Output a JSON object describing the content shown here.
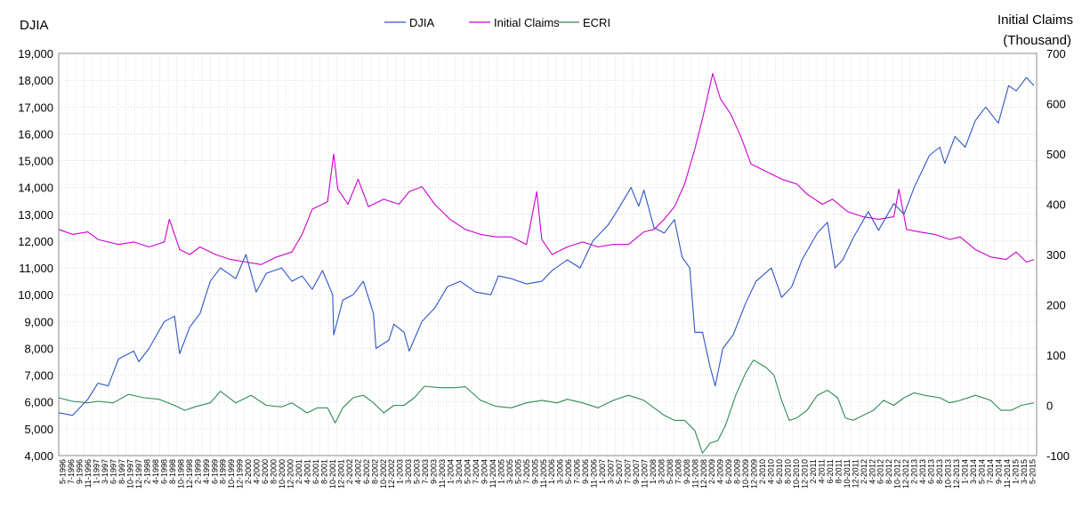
{
  "chart_data": {
    "type": "line",
    "title": "",
    "left_axis_title": "DJIA",
    "right_axis_title_line1": "Initial Claims",
    "right_axis_title_line2": "(Thousand)",
    "left_ylim": [
      4000,
      19000
    ],
    "left_ticks": [
      "4,000",
      "5,000",
      "6,000",
      "7,000",
      "8,000",
      "9,000",
      "10,000",
      "11,000",
      "12,000",
      "13,000",
      "14,000",
      "15,000",
      "16,000",
      "17,000",
      "18,000",
      "19,000"
    ],
    "right_ylim": [
      -100,
      700
    ],
    "right_ticks": [
      "-100",
      "0",
      "100",
      "200",
      "300",
      "400",
      "500",
      "600",
      "700"
    ],
    "right_tick_colors": {
      "-100": "#ff0000",
      "default": "#000000"
    },
    "grid": true,
    "legend_position": "top-center",
    "x_tick_labels": [
      "5-1996",
      "7-1996",
      "9-1996",
      "11-1996",
      "1-1997",
      "3-1997",
      "6-1997",
      "8-1997",
      "10-1997",
      "12-1997",
      "2-1998",
      "4-1998",
      "6-1998",
      "8-1998",
      "10-1998",
      "12-1998",
      "2-1999",
      "4-1999",
      "6-1999",
      "8-1999",
      "10-1999",
      "12-1999",
      "2-2000",
      "4-2000",
      "6-2000",
      "8-2000",
      "10-2000",
      "12-2000",
      "2-2001",
      "4-2001",
      "6-2001",
      "8-2001",
      "10-2001",
      "12-2001",
      "2-2002",
      "4-2002",
      "6-2002",
      "8-2002",
      "10-2002",
      "12-2002",
      "1-2003",
      "3-2003",
      "5-2003",
      "7-2003",
      "9-2003",
      "11-2003",
      "1-2004",
      "3-2004",
      "5-2004",
      "7-2004",
      "9-2004",
      "11-2004",
      "1-2005",
      "3-2005",
      "5-2005",
      "7-2005",
      "9-2005",
      "11-2005",
      "1-2006",
      "3-2006",
      "5-2006",
      "7-2006",
      "9-2006",
      "11-2006",
      "1-2007",
      "3-2007",
      "5-2007",
      "7-2007",
      "9-2007",
      "11-2007",
      "1-2008",
      "3-2008",
      "5-2008",
      "7-2008",
      "9-2008",
      "11-2008",
      "12-2008",
      "2-2009",
      "4-2009",
      "6-2009",
      "8-2009",
      "10-2009",
      "12-2009",
      "2-2010",
      "4-2010",
      "6-2010",
      "8-2010",
      "10-2010",
      "12-2010",
      "2-2011",
      "4-2011",
      "6-2011",
      "8-2011",
      "10-2011",
      "12-2011",
      "2-2012",
      "4-2012",
      "6-2012",
      "8-2012",
      "10-2012",
      "12-2012",
      "2-2013",
      "4-2013",
      "6-2013",
      "8-2013",
      "10-2013",
      "12-2013",
      "1-2014",
      "3-2014",
      "5-2014",
      "7-2014",
      "9-2014",
      "11-2014",
      "1-2015",
      "3-2015",
      "5-2015"
    ],
    "series": [
      {
        "name": "DJIA",
        "axis": "left",
        "color": "#2f55c8",
        "points": [
          [
            1996.33,
            5600
          ],
          [
            1996.6,
            5500
          ],
          [
            1996.9,
            6100
          ],
          [
            1997.1,
            6700
          ],
          [
            1997.3,
            6600
          ],
          [
            1997.5,
            7600
          ],
          [
            1997.8,
            7900
          ],
          [
            1997.9,
            7500
          ],
          [
            1998.1,
            8000
          ],
          [
            1998.4,
            9000
          ],
          [
            1998.6,
            9200
          ],
          [
            1998.7,
            7800
          ],
          [
            1998.9,
            8800
          ],
          [
            1999.1,
            9300
          ],
          [
            1999.3,
            10500
          ],
          [
            1999.5,
            11000
          ],
          [
            1999.8,
            10600
          ],
          [
            2000.0,
            11500
          ],
          [
            2000.2,
            10100
          ],
          [
            2000.4,
            10800
          ],
          [
            2000.7,
            11000
          ],
          [
            2000.9,
            10500
          ],
          [
            2001.1,
            10700
          ],
          [
            2001.3,
            10200
          ],
          [
            2001.5,
            10900
          ],
          [
            2001.7,
            10000
          ],
          [
            2001.72,
            8500
          ],
          [
            2001.9,
            9800
          ],
          [
            2002.1,
            10000
          ],
          [
            2002.3,
            10500
          ],
          [
            2002.5,
            9300
          ],
          [
            2002.55,
            8000
          ],
          [
            2002.8,
            8300
          ],
          [
            2002.9,
            8900
          ],
          [
            2003.1,
            8600
          ],
          [
            2003.2,
            7900
          ],
          [
            2003.45,
            9000
          ],
          [
            2003.7,
            9500
          ],
          [
            2003.95,
            10300
          ],
          [
            2004.2,
            10500
          ],
          [
            2004.5,
            10100
          ],
          [
            2004.8,
            10000
          ],
          [
            2004.95,
            10700
          ],
          [
            2005.2,
            10600
          ],
          [
            2005.5,
            10400
          ],
          [
            2005.8,
            10500
          ],
          [
            2006.0,
            10900
          ],
          [
            2006.3,
            11300
          ],
          [
            2006.55,
            11000
          ],
          [
            2006.8,
            12000
          ],
          [
            2007.1,
            12600
          ],
          [
            2007.3,
            13200
          ],
          [
            2007.55,
            14000
          ],
          [
            2007.7,
            13300
          ],
          [
            2007.8,
            13900
          ],
          [
            2008.0,
            12500
          ],
          [
            2008.2,
            12300
          ],
          [
            2008.4,
            12800
          ],
          [
            2008.55,
            11400
          ],
          [
            2008.7,
            11000
          ],
          [
            2008.8,
            8600
          ],
          [
            2008.95,
            8600
          ],
          [
            2009.1,
            7300
          ],
          [
            2009.2,
            6600
          ],
          [
            2009.35,
            8000
          ],
          [
            2009.55,
            8500
          ],
          [
            2009.8,
            9700
          ],
          [
            2010.0,
            10500
          ],
          [
            2010.3,
            11000
          ],
          [
            2010.5,
            9900
          ],
          [
            2010.7,
            10300
          ],
          [
            2010.9,
            11300
          ],
          [
            2011.2,
            12300
          ],
          [
            2011.4,
            12700
          ],
          [
            2011.55,
            11000
          ],
          [
            2011.7,
            11300
          ],
          [
            2011.9,
            12100
          ],
          [
            2012.2,
            13100
          ],
          [
            2012.4,
            12400
          ],
          [
            2012.7,
            13400
          ],
          [
            2012.9,
            13000
          ],
          [
            2013.1,
            14000
          ],
          [
            2013.4,
            15200
          ],
          [
            2013.6,
            15500
          ],
          [
            2013.7,
            14900
          ],
          [
            2013.9,
            15900
          ],
          [
            2014.1,
            15500
          ],
          [
            2014.3,
            16500
          ],
          [
            2014.5,
            17000
          ],
          [
            2014.75,
            16400
          ],
          [
            2014.95,
            17800
          ],
          [
            2015.1,
            17600
          ],
          [
            2015.3,
            18100
          ],
          [
            2015.45,
            17800
          ]
        ]
      },
      {
        "name": "Initial Claims",
        "axis": "right",
        "color": "#cc00cc",
        "points": [
          [
            1996.33,
            350
          ],
          [
            1996.6,
            340
          ],
          [
            1996.9,
            345
          ],
          [
            1997.1,
            330
          ],
          [
            1997.5,
            320
          ],
          [
            1997.8,
            325
          ],
          [
            1998.1,
            315
          ],
          [
            1998.4,
            325
          ],
          [
            1998.5,
            370
          ],
          [
            1998.7,
            310
          ],
          [
            1998.9,
            300
          ],
          [
            1999.1,
            315
          ],
          [
            1999.4,
            300
          ],
          [
            1999.7,
            290
          ],
          [
            2000.0,
            285
          ],
          [
            2000.3,
            280
          ],
          [
            2000.6,
            295
          ],
          [
            2000.9,
            305
          ],
          [
            2001.1,
            340
          ],
          [
            2001.3,
            390
          ],
          [
            2001.6,
            405
          ],
          [
            2001.72,
            500
          ],
          [
            2001.8,
            430
          ],
          [
            2002.0,
            400
          ],
          [
            2002.2,
            450
          ],
          [
            2002.4,
            395
          ],
          [
            2002.7,
            410
          ],
          [
            2003.0,
            400
          ],
          [
            2003.2,
            425
          ],
          [
            2003.45,
            435
          ],
          [
            2003.7,
            400
          ],
          [
            2004.0,
            370
          ],
          [
            2004.3,
            350
          ],
          [
            2004.6,
            340
          ],
          [
            2004.9,
            335
          ],
          [
            2005.2,
            335
          ],
          [
            2005.5,
            320
          ],
          [
            2005.7,
            425
          ],
          [
            2005.8,
            330
          ],
          [
            2006.0,
            300
          ],
          [
            2006.3,
            315
          ],
          [
            2006.6,
            325
          ],
          [
            2006.9,
            315
          ],
          [
            2007.2,
            320
          ],
          [
            2007.5,
            320
          ],
          [
            2007.8,
            345
          ],
          [
            2008.0,
            350
          ],
          [
            2008.2,
            370
          ],
          [
            2008.4,
            395
          ],
          [
            2008.6,
            440
          ],
          [
            2008.8,
            510
          ],
          [
            2008.95,
            570
          ],
          [
            2009.15,
            660
          ],
          [
            2009.3,
            610
          ],
          [
            2009.5,
            580
          ],
          [
            2009.7,
            535
          ],
          [
            2009.9,
            480
          ],
          [
            2010.2,
            465
          ],
          [
            2010.5,
            450
          ],
          [
            2010.8,
            440
          ],
          [
            2011.0,
            420
          ],
          [
            2011.3,
            400
          ],
          [
            2011.5,
            410
          ],
          [
            2011.8,
            385
          ],
          [
            2012.1,
            375
          ],
          [
            2012.4,
            370
          ],
          [
            2012.7,
            375
          ],
          [
            2012.8,
            430
          ],
          [
            2012.95,
            350
          ],
          [
            2013.2,
            345
          ],
          [
            2013.5,
            340
          ],
          [
            2013.8,
            330
          ],
          [
            2014.0,
            335
          ],
          [
            2014.3,
            310
          ],
          [
            2014.6,
            295
          ],
          [
            2014.9,
            290
          ],
          [
            2015.1,
            305
          ],
          [
            2015.3,
            285
          ],
          [
            2015.45,
            290
          ]
        ]
      },
      {
        "name": "ECRI",
        "axis": "right",
        "color": "#2e8b57",
        "points": [
          [
            1996.33,
            15
          ],
          [
            1996.6,
            8
          ],
          [
            1996.9,
            5
          ],
          [
            1997.1,
            8
          ],
          [
            1997.4,
            5
          ],
          [
            1997.7,
            22
          ],
          [
            1998.0,
            15
          ],
          [
            1998.3,
            12
          ],
          [
            1998.6,
            0
          ],
          [
            1998.8,
            -10
          ],
          [
            1999.0,
            -3
          ],
          [
            1999.3,
            5
          ],
          [
            1999.5,
            28
          ],
          [
            1999.8,
            5
          ],
          [
            2000.1,
            20
          ],
          [
            2000.4,
            0
          ],
          [
            2000.7,
            -3
          ],
          [
            2000.9,
            5
          ],
          [
            2001.2,
            -15
          ],
          [
            2001.4,
            -5
          ],
          [
            2001.6,
            -5
          ],
          [
            2001.75,
            -35
          ],
          [
            2001.9,
            -5
          ],
          [
            2002.1,
            15
          ],
          [
            2002.3,
            20
          ],
          [
            2002.5,
            5
          ],
          [
            2002.7,
            -15
          ],
          [
            2002.9,
            0
          ],
          [
            2003.1,
            0
          ],
          [
            2003.3,
            15
          ],
          [
            2003.5,
            38
          ],
          [
            2003.8,
            35
          ],
          [
            2004.1,
            35
          ],
          [
            2004.3,
            37
          ],
          [
            2004.6,
            10
          ],
          [
            2004.9,
            -2
          ],
          [
            2005.2,
            -5
          ],
          [
            2005.5,
            5
          ],
          [
            2005.8,
            10
          ],
          [
            2006.1,
            5
          ],
          [
            2006.3,
            12
          ],
          [
            2006.6,
            5
          ],
          [
            2006.9,
            -5
          ],
          [
            2007.2,
            10
          ],
          [
            2007.5,
            20
          ],
          [
            2007.8,
            10
          ],
          [
            2008.0,
            -5
          ],
          [
            2008.2,
            -20
          ],
          [
            2008.4,
            -30
          ],
          [
            2008.6,
            -30
          ],
          [
            2008.8,
            -50
          ],
          [
            2008.95,
            -95
          ],
          [
            2009.1,
            -75
          ],
          [
            2009.25,
            -70
          ],
          [
            2009.4,
            -40
          ],
          [
            2009.6,
            20
          ],
          [
            2009.8,
            65
          ],
          [
            2009.95,
            90
          ],
          [
            2010.2,
            75
          ],
          [
            2010.35,
            60
          ],
          [
            2010.5,
            10
          ],
          [
            2010.65,
            -30
          ],
          [
            2010.8,
            -25
          ],
          [
            2011.0,
            -10
          ],
          [
            2011.2,
            20
          ],
          [
            2011.4,
            30
          ],
          [
            2011.6,
            15
          ],
          [
            2011.75,
            -25
          ],
          [
            2011.9,
            -30
          ],
          [
            2012.1,
            -20
          ],
          [
            2012.3,
            -10
          ],
          [
            2012.5,
            10
          ],
          [
            2012.7,
            0
          ],
          [
            2012.9,
            15
          ],
          [
            2013.1,
            25
          ],
          [
            2013.3,
            20
          ],
          [
            2013.6,
            15
          ],
          [
            2013.8,
            5
          ],
          [
            2014.0,
            10
          ],
          [
            2014.3,
            20
          ],
          [
            2014.6,
            10
          ],
          [
            2014.8,
            -10
          ],
          [
            2015.0,
            -10
          ],
          [
            2015.2,
            0
          ],
          [
            2015.45,
            5
          ]
        ]
      }
    ]
  }
}
